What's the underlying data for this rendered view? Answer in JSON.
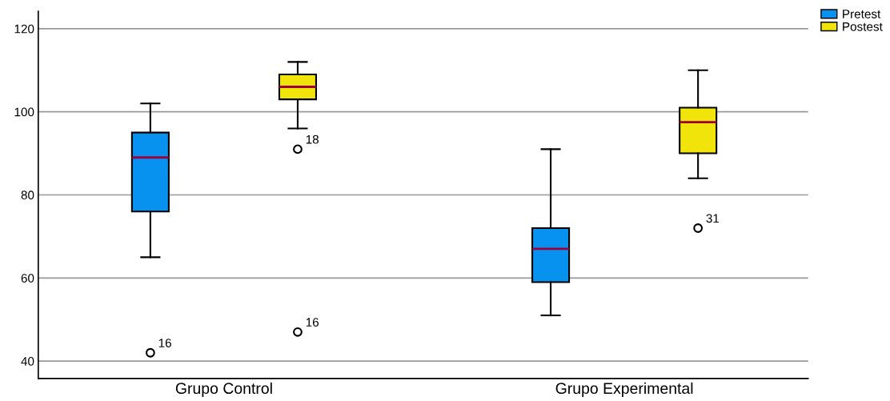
{
  "chart_data": {
    "type": "box",
    "categories": [
      "Grupo Control",
      "Grupo Experimental"
    ],
    "series": [
      {
        "name": "Pretest",
        "color": "#0892f0",
        "boxes": [
          {
            "low": 65,
            "q1": 76,
            "median": 89,
            "q3": 95,
            "high": 102,
            "outliers": [
              42
            ]
          },
          {
            "low": 51,
            "q1": 59,
            "median": 67,
            "q3": 72,
            "high": 91
          }
        ]
      },
      {
        "name": "Postest",
        "color": "#f0e40a",
        "boxes": [
          {
            "low": 96,
            "q1": 103,
            "median": 106,
            "q3": 109,
            "high": 112,
            "outliers": [
              91,
              47
            ]
          },
          {
            "low": 84,
            "q1": 90,
            "median": 97.5,
            "q3": 101,
            "high": 110,
            "outliers": [
              72
            ]
          }
        ]
      }
    ],
    "ylim": [
      35.8,
      124.2
    ],
    "yticks": [
      40,
      60,
      80,
      100,
      120
    ],
    "grid": "y",
    "legend": "top right",
    "annotations": [
      "16",
      "18",
      "16",
      "31"
    ]
  }
}
